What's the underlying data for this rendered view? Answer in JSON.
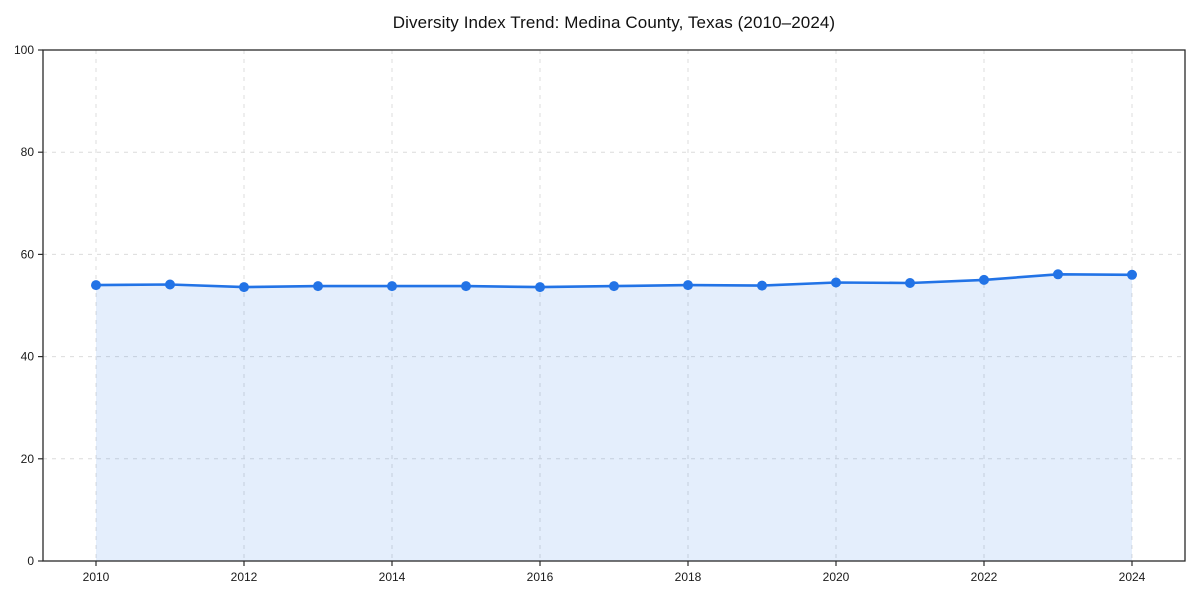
{
  "figure": {
    "background": "#ffffff"
  },
  "chart_data": {
    "type": "area",
    "title": "Diversity Index Trend: Medina County, Texas (2010–2024)",
    "x": [
      2010,
      2011,
      2012,
      2013,
      2014,
      2015,
      2016,
      2017,
      2018,
      2019,
      2020,
      2021,
      2022,
      2023,
      2024
    ],
    "series": [
      {
        "name": "Diversity Index",
        "values": [
          54.0,
          54.1,
          53.6,
          53.8,
          53.8,
          53.8,
          53.6,
          53.8,
          54.0,
          53.9,
          54.5,
          54.4,
          55.0,
          56.1,
          56.0
        ]
      }
    ],
    "xlabel": "",
    "ylabel": "",
    "ylim": [
      0,
      100
    ],
    "yticks": [
      0,
      20,
      40,
      60,
      80,
      100
    ],
    "xticks": [
      2010,
      2012,
      2014,
      2016,
      2018,
      2020,
      2022,
      2024
    ],
    "grid": "dashed",
    "legend": "none",
    "colors": {
      "line": "#2273e6",
      "marker": "#2273e6",
      "fill_rgba": "rgba(34,115,230,0.12)",
      "grid": "#dcdcdc",
      "frame": "#2a2a2a",
      "text": "#1a1a1a"
    }
  }
}
